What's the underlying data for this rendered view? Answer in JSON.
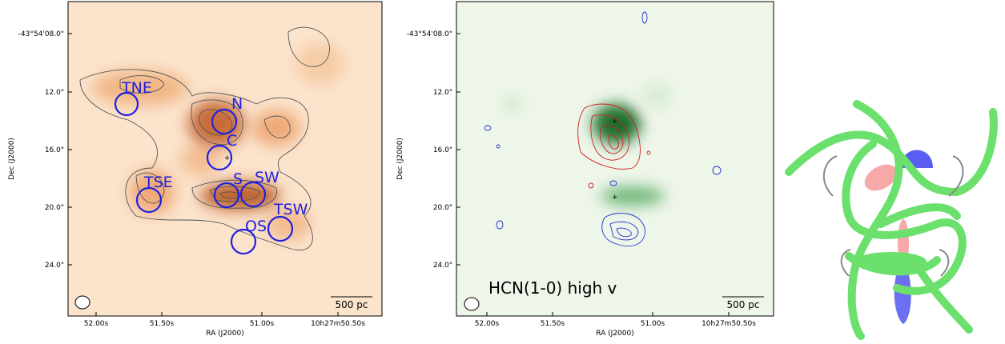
{
  "panels": [
    {
      "y_ticks": [
        "-43°54'08.0\"",
        "12.0\"",
        "16.0\"",
        "20.0\"",
        "24.0\""
      ],
      "x_ticks": [
        "52.00s",
        "51.50s",
        "51.00s",
        "10h27m50.50s"
      ],
      "x_label": "RA (J2000)",
      "y_label": "Dec (J2000)",
      "regions": [
        "TNE",
        "N",
        "C",
        "S",
        "SW",
        "TSE",
        "TSW",
        "OS"
      ],
      "scale_bar": "500 pc"
    },
    {
      "y_ticks": [
        "-43°54'08.0\"",
        "12.0\"",
        "16.0\"",
        "20.0\"",
        "24.0\""
      ],
      "x_ticks": [
        "52.00s",
        "51.50s",
        "51.00s",
        "10h27m50.50s"
      ],
      "x_label": "RA (J2000)",
      "y_label": "Dec (J2000)",
      "label": "HCN(1-0) high v",
      "scale_bar": "500 pc"
    }
  ]
}
